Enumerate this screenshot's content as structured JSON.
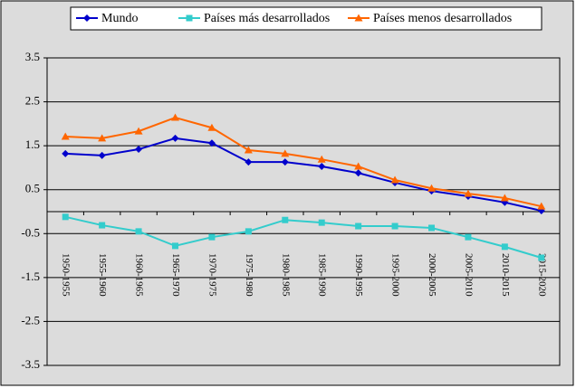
{
  "chart_data": {
    "type": "line",
    "categories": [
      "1950-1955",
      "1955-1960",
      "1960-1965",
      "1965-1970",
      "1970-1975",
      "1975-1980",
      "1980-1985",
      "1985-1990",
      "1990-1995",
      "1995-2000",
      "2000-2005",
      "2005-2010",
      "2010-2015",
      "2015-2020"
    ],
    "series": [
      {
        "name": "Mundo",
        "color": "#0000cc",
        "marker": "diamond",
        "values": [
          1.32,
          1.28,
          1.42,
          1.67,
          1.56,
          1.13,
          1.13,
          1.03,
          0.88,
          0.66,
          0.47,
          0.35,
          0.21,
          0.02
        ]
      },
      {
        "name": "Países más desarrollados",
        "color": "#33cccc",
        "marker": "square",
        "values": [
          -0.12,
          -0.31,
          -0.45,
          -0.78,
          -0.58,
          -0.45,
          -0.19,
          -0.25,
          -0.33,
          -0.33,
          -0.37,
          -0.58,
          -0.8,
          -1.05
        ]
      },
      {
        "name": "Países menos desarrollados",
        "color": "#ff6600",
        "marker": "triangle",
        "values": [
          1.71,
          1.67,
          1.83,
          2.14,
          1.91,
          1.4,
          1.32,
          1.19,
          1.03,
          0.72,
          0.53,
          0.41,
          0.31,
          0.12
        ]
      }
    ],
    "ylim": [
      -3.5,
      3.5
    ],
    "yticks": [
      3.5,
      2.5,
      1.5,
      0.5,
      -0.5,
      -1.5,
      -2.5,
      -3.5
    ],
    "grid": true,
    "legend": "top"
  }
}
